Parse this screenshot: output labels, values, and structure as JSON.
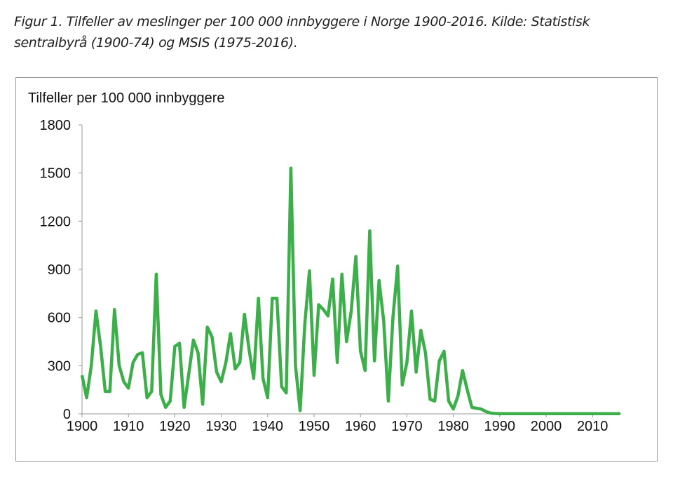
{
  "caption": "Figur 1. Tilfeller av meslinger per 100 000 innbyggere i Norge 1900-2016. Kilde: Statistisk sentralbyrå (1900-74) og MSIS (1975-2016).",
  "chart_data": {
    "type": "line",
    "title": "",
    "ylabel": "Tilfeller per 100 000 innbyggere",
    "xlabel": "",
    "xlim": [
      1900,
      2016
    ],
    "ylim": [
      0,
      1800
    ],
    "xticks": [
      1900,
      1910,
      1920,
      1930,
      1940,
      1950,
      1960,
      1970,
      1980,
      1990,
      2000,
      2010
    ],
    "yticks": [
      0,
      300,
      600,
      900,
      1200,
      1500,
      1800
    ],
    "grid": false,
    "color": "#3cae4a",
    "x_start": 1900,
    "values": [
      240,
      100,
      300,
      640,
      420,
      140,
      140,
      650,
      300,
      200,
      160,
      320,
      370,
      380,
      100,
      140,
      870,
      120,
      40,
      80,
      420,
      440,
      40,
      250,
      460,
      380,
      60,
      540,
      480,
      260,
      200,
      320,
      500,
      280,
      320,
      620,
      400,
      220,
      720,
      220,
      100,
      720,
      720,
      170,
      130,
      1530,
      300,
      20,
      560,
      890,
      240,
      680,
      650,
      610,
      840,
      320,
      870,
      450,
      640,
      980,
      390,
      270,
      1140,
      330,
      830,
      580,
      80,
      600,
      920,
      180,
      320,
      640,
      260,
      520,
      380,
      90,
      80,
      330,
      390,
      80,
      30,
      110,
      270,
      150,
      40,
      35,
      30,
      15,
      5,
      2,
      1,
      1,
      1,
      1,
      1,
      1,
      1,
      1,
      1,
      1,
      1,
      1,
      1,
      1,
      1,
      1,
      1,
      1,
      1,
      1,
      1,
      1,
      1,
      1,
      1,
      1,
      1
    ]
  }
}
